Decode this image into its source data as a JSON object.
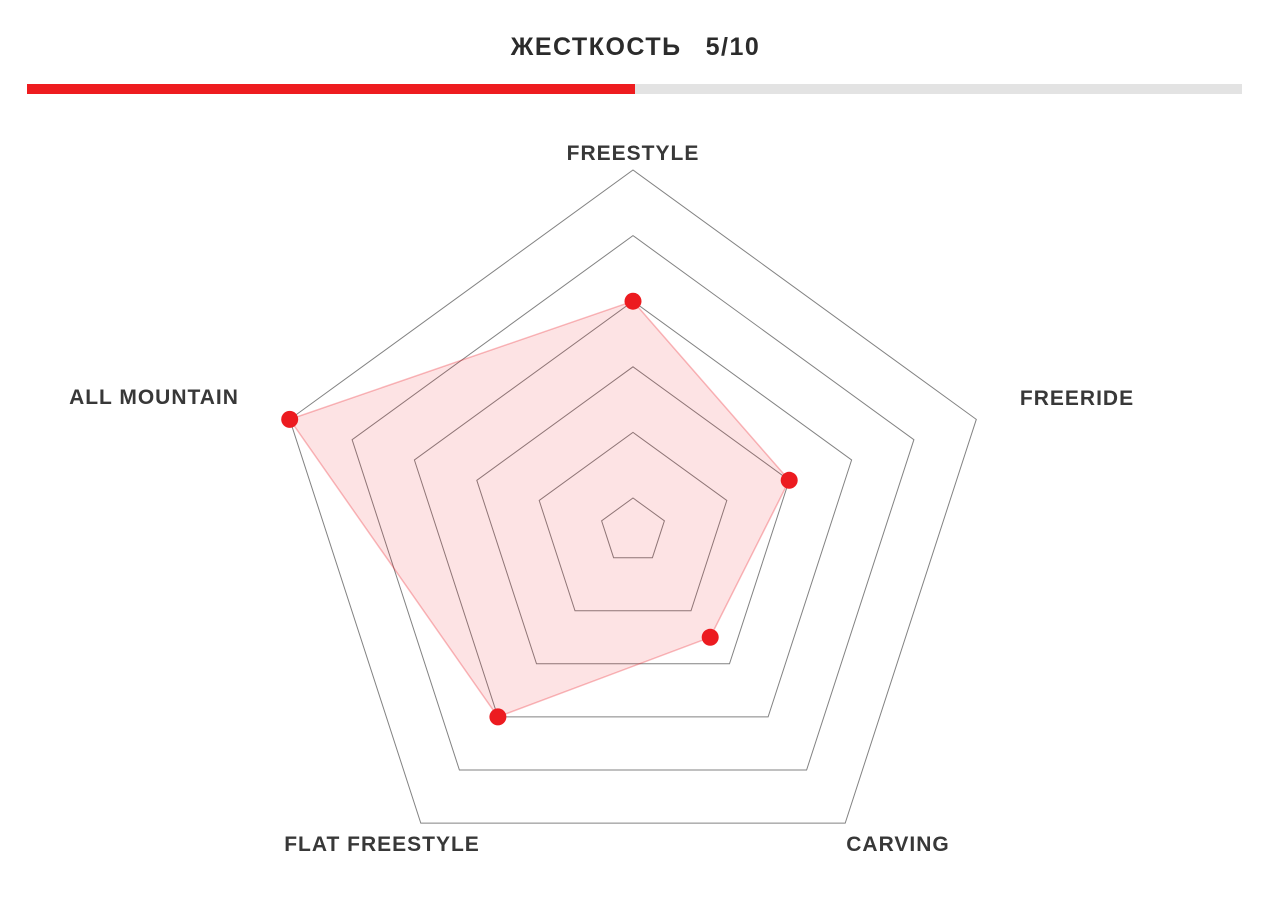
{
  "header": {
    "title": "ЖЕСТКОСТЬ",
    "value": "5/10",
    "progress_percent": 50,
    "bar_fill_color": "#ee1c1f",
    "bar_track_color": "#e3e3e3"
  },
  "chart_data": {
    "type": "radar",
    "categories": [
      "FREESTYLE",
      "FREERIDE",
      "CARVING",
      "FLAT FREESTYLE",
      "ALL MOUNTAIN"
    ],
    "values": [
      6,
      4,
      3,
      6,
      10
    ],
    "scale_max": 10,
    "grid_levels": [
      0,
      2,
      4,
      6,
      8,
      10
    ],
    "start_axis": "top",
    "direction": "clockwise",
    "legend": "none",
    "grid_color": "#828282",
    "fill_color": "rgba(236,28,36,0.12)",
    "stroke_color": "rgba(236,28,36,0.30)",
    "point_color": "#ec1b20"
  }
}
